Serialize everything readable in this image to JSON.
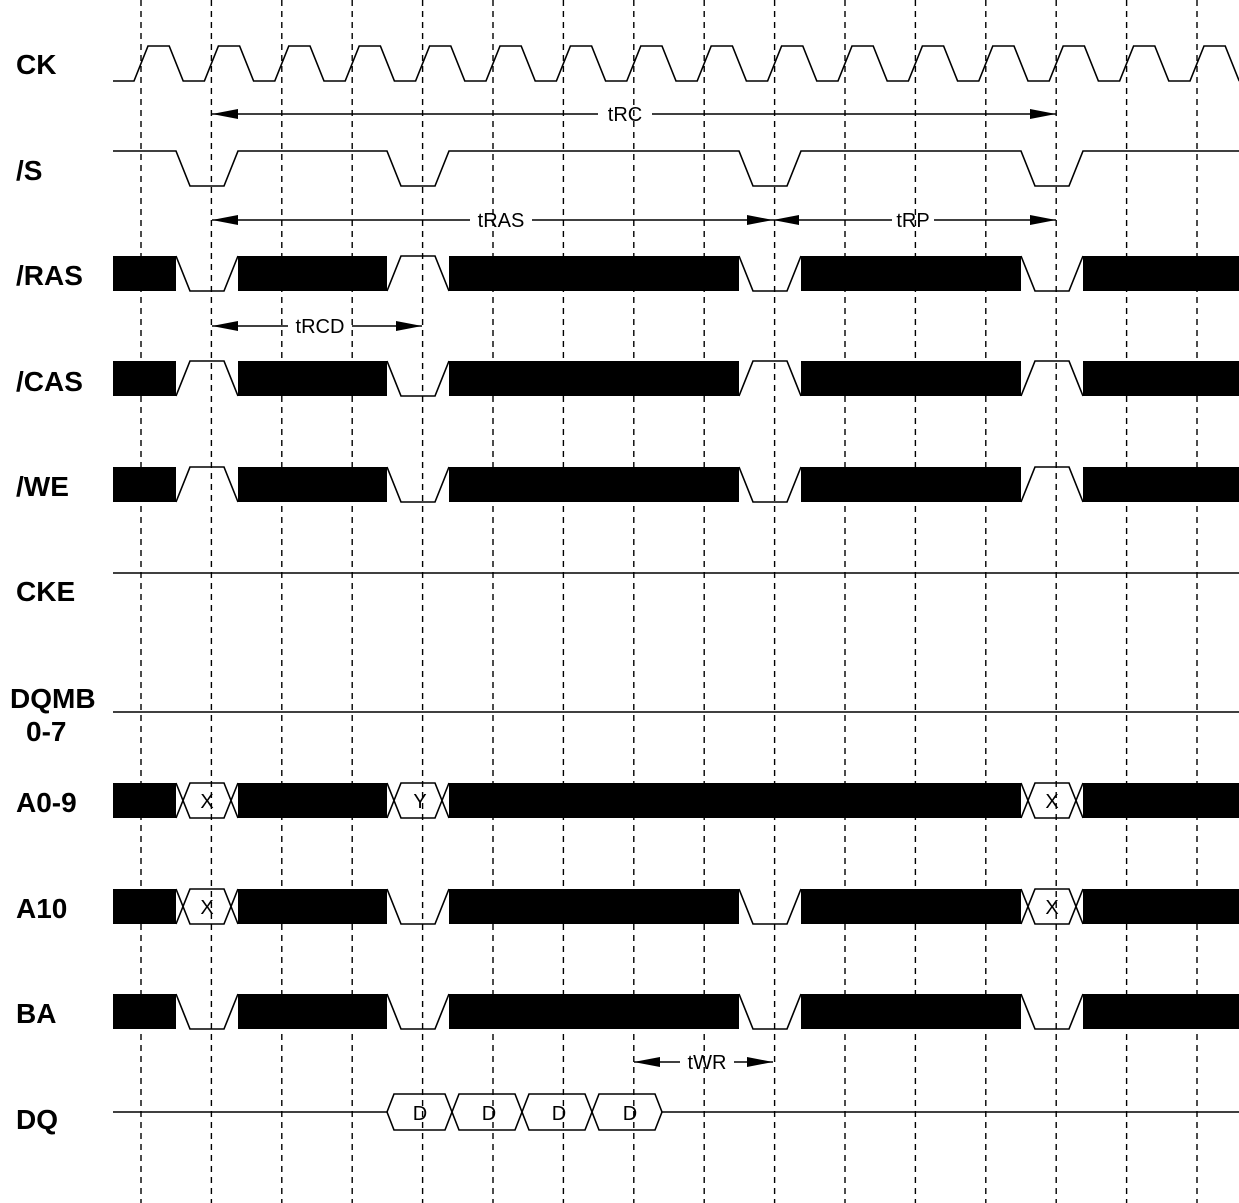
{
  "signals": [
    {
      "id": "ck",
      "label": "CK"
    },
    {
      "id": "s",
      "label": "/S"
    },
    {
      "id": "ras",
      "label": "/RAS"
    },
    {
      "id": "cas",
      "label": "/CAS"
    },
    {
      "id": "we",
      "label": "/WE"
    },
    {
      "id": "cke",
      "label": "CKE"
    },
    {
      "id": "dqmb",
      "label": "DQMB",
      "label_line2": "0-7"
    },
    {
      "id": "a09",
      "label": "A0-9"
    },
    {
      "id": "a10",
      "label": "A10"
    },
    {
      "id": "ba",
      "label": "BA"
    },
    {
      "id": "dq",
      "label": "DQ"
    }
  ],
  "timing_params": [
    {
      "id": "trc",
      "label": "tRC"
    },
    {
      "id": "tras",
      "label": "tRAS"
    },
    {
      "id": "trp",
      "label": "tRP"
    },
    {
      "id": "trcd",
      "label": "tRCD"
    },
    {
      "id": "twr",
      "label": "tWR"
    }
  ],
  "bus_values": {
    "row_address": "X",
    "column_address": "Y",
    "data": "D"
  }
}
